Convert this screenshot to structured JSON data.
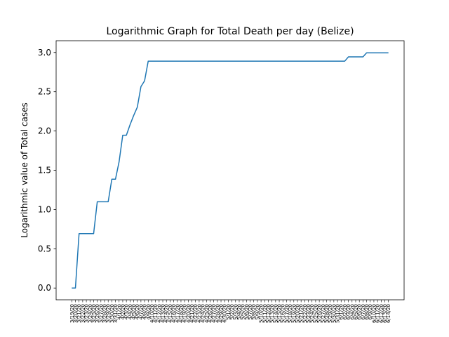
{
  "chart_data": {
    "type": "line",
    "title": "Logarithmic Graph for Total Death per day (Belize)",
    "xlabel": "",
    "ylabel": "Logarithmic value of Total cases",
    "ylim": [
      -0.15,
      3.15
    ],
    "yticks": [
      0.0,
      0.5,
      1.0,
      1.5,
      2.0,
      2.5,
      3.0
    ],
    "ytick_labels": [
      "0.0",
      "0.5",
      "1.0",
      "1.5",
      "2.0",
      "2.5",
      "3.0"
    ],
    "grid": false,
    "line_color": "#1f77b4",
    "x": [
      "3/19/20",
      "3/20/20",
      "3/21/20",
      "3/22/20",
      "3/23/20",
      "3/24/20",
      "3/25/20",
      "3/26/20",
      "3/27/20",
      "3/28/20",
      "3/29/20",
      "3/30/20",
      "3/31/20",
      "4/1/20",
      "4/2/20",
      "4/3/20",
      "4/4/20",
      "4/5/20",
      "4/6/20",
      "4/7/20",
      "4/8/20",
      "4/9/20",
      "4/10/20",
      "4/11/20",
      "4/12/20",
      "4/13/20",
      "4/14/20",
      "4/15/20",
      "4/16/20",
      "4/17/20",
      "4/18/20",
      "4/19/20",
      "4/20/20",
      "4/21/20",
      "4/22/20",
      "4/23/20",
      "4/24/20",
      "4/25/20",
      "4/26/20",
      "4/27/20",
      "4/28/20",
      "4/29/20",
      "4/30/20",
      "5/1/20",
      "5/2/20",
      "5/3/20",
      "5/4/20",
      "5/5/20",
      "5/6/20",
      "5/7/20",
      "5/8/20",
      "5/9/20",
      "5/10/20",
      "5/11/20",
      "5/12/20",
      "5/13/20",
      "5/14/20",
      "5/15/20",
      "5/16/20",
      "5/17/20",
      "5/18/20",
      "5/19/20",
      "5/20/20",
      "5/21/20",
      "5/22/20",
      "5/23/20",
      "5/24/20",
      "5/25/20",
      "5/26/20",
      "5/27/20",
      "5/28/20",
      "5/29/20",
      "5/30/20",
      "5/31/20",
      "6/1/20",
      "6/2/20",
      "6/3/20",
      "6/4/20",
      "6/5/20",
      "6/6/20",
      "6/7/20",
      "6/8/20",
      "6/9/20",
      "6/10/20",
      "6/11/20",
      "6/12/20",
      "6/13/20",
      "6/14/20"
    ],
    "series": [
      {
        "values": [
          0.0,
          0.0,
          0.693,
          0.693,
          0.693,
          0.693,
          0.693,
          1.099,
          1.099,
          1.099,
          1.099,
          1.386,
          1.386,
          1.609,
          1.946,
          1.946,
          2.079,
          2.197,
          2.303,
          2.565,
          2.639,
          2.89,
          2.89,
          2.89,
          2.89,
          2.89,
          2.89,
          2.89,
          2.89,
          2.89,
          2.89,
          2.89,
          2.89,
          2.89,
          2.89,
          2.89,
          2.89,
          2.89,
          2.89,
          2.89,
          2.89,
          2.89,
          2.89,
          2.89,
          2.89,
          2.89,
          2.89,
          2.89,
          2.89,
          2.89,
          2.89,
          2.89,
          2.89,
          2.89,
          2.89,
          2.89,
          2.89,
          2.89,
          2.89,
          2.89,
          2.89,
          2.89,
          2.89,
          2.89,
          2.89,
          2.89,
          2.89,
          2.89,
          2.89,
          2.89,
          2.89,
          2.89,
          2.89,
          2.89,
          2.89,
          2.89,
          2.944,
          2.944,
          2.944,
          2.944,
          2.944,
          2.996,
          2.996,
          2.996,
          2.996,
          2.996,
          2.996,
          2.996
        ]
      }
    ]
  }
}
